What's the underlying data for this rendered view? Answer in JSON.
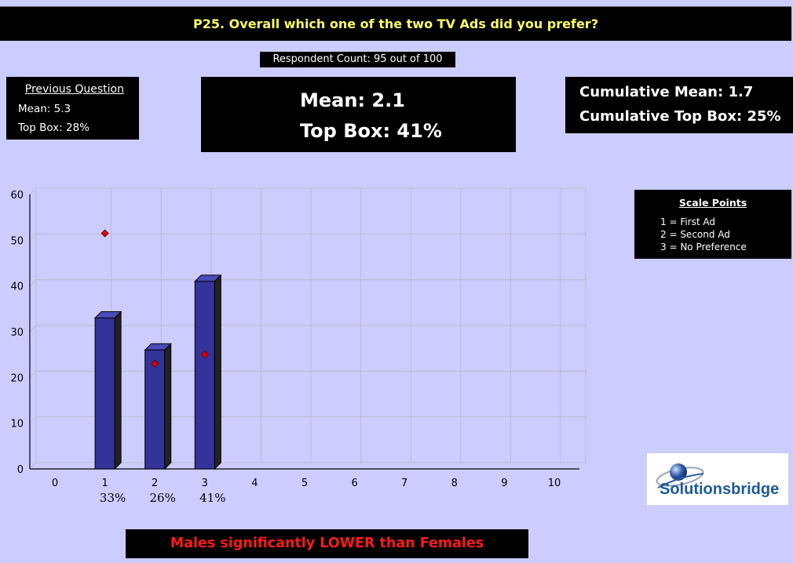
{
  "title": "P25. Overall which one of the two TV Ads did you prefer?",
  "respondent_count": "Respondent Count: 95 out of 100",
  "previous_question": {
    "heading": "Previous Question",
    "mean": "Mean: 5.3",
    "top_box": "Top Box: 28%"
  },
  "stats": {
    "mean": "Mean: 2.1",
    "top_box": "Top Box: 41%"
  },
  "cumulative": {
    "mean": "Cumulative Mean: 1.7",
    "top_box": "Cumulative Top Box: 25%"
  },
  "scale_points": {
    "heading": "Scale Points",
    "items": [
      "1 = First Ad",
      "2 = Second Ad",
      "3 = No Preference"
    ]
  },
  "logo_text": "Solutionsbridge",
  "footer_note": "Males significantly LOWER than Females",
  "colors": {
    "background": "#ccccff",
    "bar_front": "#333399",
    "bar_side": "#222222",
    "marker": "#dd0000",
    "title_text": "#ffff66",
    "footer_text": "#ff1a1a"
  },
  "chart_data": {
    "type": "bar",
    "x_ticks": [
      "0",
      "1",
      "2",
      "3",
      "4",
      "5",
      "6",
      "7",
      "8",
      "9",
      "10"
    ],
    "y_ticks": [
      "0",
      "10",
      "20",
      "30",
      "40",
      "50",
      "60"
    ],
    "ylim": [
      0,
      60
    ],
    "xlim": [
      0,
      10
    ],
    "series": [
      {
        "categories": [
          1,
          2,
          3
        ],
        "values": [
          33,
          26,
          41
        ],
        "labels": [
          "33%",
          "26%",
          "41%"
        ]
      }
    ],
    "markers": [
      {
        "x": 1,
        "y": 51.5
      },
      {
        "x": 2,
        "y": 23
      },
      {
        "x": 3,
        "y": 25
      }
    ],
    "grid": true
  }
}
